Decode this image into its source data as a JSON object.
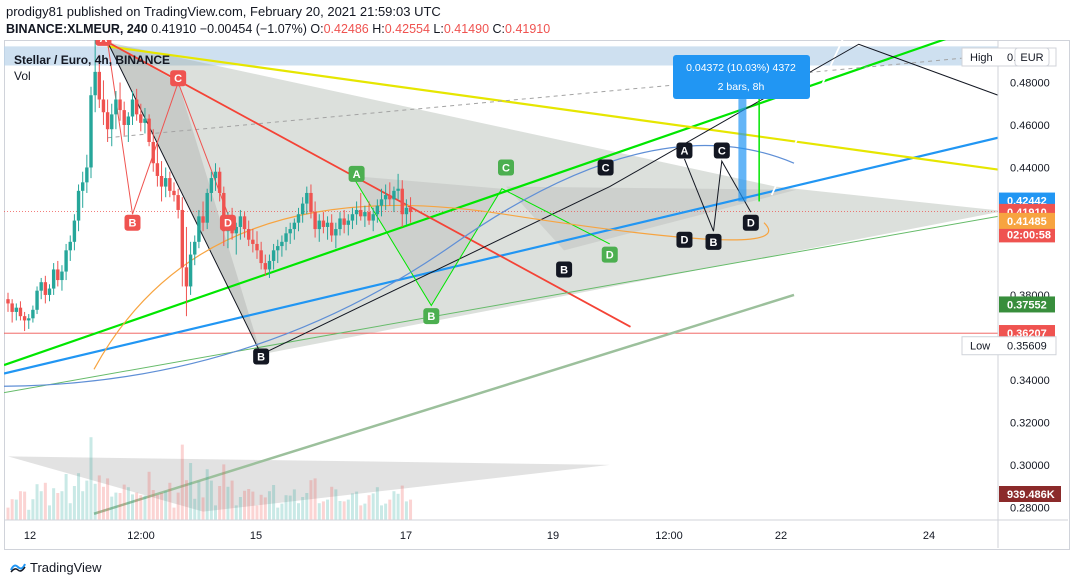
{
  "header": {
    "line1": "prodigy81 published on TradingView.com, February 20, 2021 21:59:03 UTC",
    "symbol": "BINANCE:XLMEUR, 240",
    "last": "0.41910",
    "change": "−0.00454 (−1.07%)",
    "o_label": "O:",
    "o": "0.42486",
    "h_label": "H:",
    "h": "0.42554",
    "l_label": "L:",
    "l": "0.41490",
    "c_label": "C:",
    "c": "0.41910"
  },
  "legend": {
    "title": "Stellar / Euro, 4h, BINANCE",
    "vol": "Vol"
  },
  "currency_button": "EUR",
  "footer": {
    "brand": "TradingView"
  },
  "colors": {
    "up": "#26a69a",
    "down": "#ef5350",
    "blue": "#2196f3",
    "green": "#00e600",
    "yellow": "#e6e600",
    "red": "#f44336",
    "black": "#131722",
    "orange": "#f7a440"
  },
  "chart_data": {
    "type": "candlestick",
    "ylim": [
      0.275,
      0.5
    ],
    "y_ticks": [
      "0.48000",
      "0.46000",
      "0.44000",
      "0.38000",
      "0.34000",
      "0.32000",
      "0.30000",
      "0.28000"
    ],
    "x_ticks": [
      "12",
      "12:00",
      "15",
      "17",
      "19",
      "12:00",
      "22",
      "24"
    ],
    "price_labels": [
      {
        "text": "High",
        "value": "0.4…",
        "y": 0.492,
        "style": "plain"
      },
      {
        "text": "",
        "value": "0.42442",
        "y": 0.42442,
        "style": "blue"
      },
      {
        "text": "",
        "value": "0.41910",
        "y": 0.4191,
        "style": "red"
      },
      {
        "text": "",
        "value": "02:00:58",
        "y": 0.4085,
        "style": "red"
      },
      {
        "text": "",
        "value": "0.41485",
        "y": 0.41485,
        "style": "orange"
      },
      {
        "text": "",
        "value": "0.37552",
        "y": 0.37552,
        "style": "green"
      },
      {
        "text": "",
        "value": "0.36207",
        "y": 0.36207,
        "style": "red"
      },
      {
        "text": "Low",
        "value": "0.35609",
        "y": 0.35609,
        "style": "plain"
      }
    ],
    "volume_label": "939.486K",
    "measure": {
      "line1": "0.04372 (10.03%) 4372",
      "line2": "2 bars, 8h"
    },
    "pattern_labels": [
      {
        "t": "A",
        "x": 23,
        "y": 0.501,
        "c": "red"
      },
      {
        "t": "C",
        "x": 41,
        "y": 0.482,
        "c": "red"
      },
      {
        "t": "B",
        "x": 30,
        "y": 0.414,
        "c": "red"
      },
      {
        "t": "D",
        "x": 53,
        "y": 0.414,
        "c": "red"
      },
      {
        "t": "A",
        "x": 84,
        "y": 0.437,
        "c": "green"
      },
      {
        "t": "C",
        "x": 120,
        "y": 0.44,
        "c": "green"
      },
      {
        "t": "B",
        "x": 102,
        "y": 0.37,
        "c": "green"
      },
      {
        "t": "D",
        "x": 145,
        "y": 0.399,
        "c": "green"
      },
      {
        "t": "B",
        "x": 61,
        "y": 0.351,
        "c": "black"
      },
      {
        "t": "C",
        "x": 144,
        "y": 0.44,
        "c": "black"
      },
      {
        "t": "B",
        "x": 134,
        "y": 0.392,
        "c": "black"
      },
      {
        "t": "A",
        "x": 163,
        "y": 0.448,
        "c": "black"
      },
      {
        "t": "C",
        "x": 172,
        "y": 0.448,
        "c": "black"
      },
      {
        "t": "D",
        "x": 163,
        "y": 0.406,
        "c": "black"
      },
      {
        "t": "B",
        "x": 170,
        "y": 0.405,
        "c": "black"
      },
      {
        "t": "D",
        "x": 179,
        "y": 0.414,
        "c": "black"
      }
    ],
    "candles": [
      [
        0.378,
        0.381,
        0.372,
        0.376
      ],
      [
        0.376,
        0.378,
        0.367,
        0.372
      ],
      [
        0.372,
        0.376,
        0.368,
        0.374
      ],
      [
        0.374,
        0.377,
        0.368,
        0.37
      ],
      [
        0.37,
        0.372,
        0.363,
        0.368
      ],
      [
        0.368,
        0.371,
        0.364,
        0.369
      ],
      [
        0.369,
        0.375,
        0.367,
        0.373
      ],
      [
        0.373,
        0.384,
        0.371,
        0.382
      ],
      [
        0.382,
        0.388,
        0.378,
        0.386
      ],
      [
        0.386,
        0.389,
        0.376,
        0.38
      ],
      [
        0.38,
        0.385,
        0.377,
        0.383
      ],
      [
        0.383,
        0.395,
        0.38,
        0.392
      ],
      [
        0.392,
        0.396,
        0.384,
        0.387
      ],
      [
        0.387,
        0.394,
        0.382,
        0.391
      ],
      [
        0.391,
        0.404,
        0.387,
        0.401
      ],
      [
        0.401,
        0.408,
        0.396,
        0.405
      ],
      [
        0.405,
        0.418,
        0.401,
        0.415
      ],
      [
        0.415,
        0.432,
        0.41,
        0.429
      ],
      [
        0.429,
        0.438,
        0.421,
        0.433
      ],
      [
        0.433,
        0.446,
        0.428,
        0.44
      ],
      [
        0.44,
        0.478,
        0.435,
        0.474
      ],
      [
        0.474,
        0.5,
        0.466,
        0.485
      ],
      [
        0.485,
        0.493,
        0.468,
        0.472
      ],
      [
        0.472,
        0.481,
        0.46,
        0.466
      ],
      [
        0.466,
        0.472,
        0.452,
        0.458
      ],
      [
        0.458,
        0.47,
        0.45,
        0.465
      ],
      [
        0.465,
        0.476,
        0.458,
        0.472
      ],
      [
        0.472,
        0.48,
        0.462,
        0.467
      ],
      [
        0.467,
        0.471,
        0.455,
        0.46
      ],
      [
        0.46,
        0.466,
        0.452,
        0.464
      ],
      [
        0.464,
        0.476,
        0.46,
        0.472
      ],
      [
        0.472,
        0.477,
        0.462,
        0.465
      ],
      [
        0.465,
        0.47,
        0.457,
        0.461
      ],
      [
        0.461,
        0.468,
        0.456,
        0.463
      ],
      [
        0.463,
        0.465,
        0.45,
        0.452
      ],
      [
        0.452,
        0.458,
        0.438,
        0.442
      ],
      [
        0.442,
        0.451,
        0.431,
        0.436
      ],
      [
        0.436,
        0.443,
        0.424,
        0.431
      ],
      [
        0.431,
        0.44,
        0.426,
        0.435
      ],
      [
        0.435,
        0.438,
        0.426,
        0.429
      ],
      [
        0.429,
        0.433,
        0.424,
        0.427
      ],
      [
        0.427,
        0.43,
        0.416,
        0.42
      ],
      [
        0.42,
        0.426,
        0.384,
        0.393
      ],
      [
        0.393,
        0.412,
        0.37,
        0.384
      ],
      [
        0.384,
        0.405,
        0.38,
        0.399
      ],
      [
        0.399,
        0.408,
        0.394,
        0.405
      ],
      [
        0.405,
        0.42,
        0.402,
        0.417
      ],
      [
        0.417,
        0.424,
        0.41,
        0.414
      ],
      [
        0.414,
        0.43,
        0.411,
        0.428
      ],
      [
        0.428,
        0.438,
        0.424,
        0.435
      ],
      [
        0.435,
        0.442,
        0.429,
        0.438
      ],
      [
        0.438,
        0.44,
        0.424,
        0.428
      ],
      [
        0.428,
        0.431,
        0.403,
        0.41
      ],
      [
        0.41,
        0.419,
        0.402,
        0.416
      ],
      [
        0.416,
        0.421,
        0.406,
        0.409
      ],
      [
        0.409,
        0.414,
        0.399,
        0.412
      ],
      [
        0.412,
        0.42,
        0.406,
        0.417
      ],
      [
        0.417,
        0.419,
        0.407,
        0.411
      ],
      [
        0.411,
        0.415,
        0.403,
        0.406
      ],
      [
        0.406,
        0.411,
        0.4,
        0.404
      ],
      [
        0.404,
        0.41,
        0.397,
        0.401
      ],
      [
        0.401,
        0.405,
        0.392,
        0.395
      ],
      [
        0.395,
        0.399,
        0.389,
        0.392
      ],
      [
        0.392,
        0.399,
        0.388,
        0.396
      ],
      [
        0.396,
        0.404,
        0.392,
        0.401
      ],
      [
        0.401,
        0.406,
        0.395,
        0.403
      ],
      [
        0.403,
        0.408,
        0.398,
        0.405
      ],
      [
        0.405,
        0.412,
        0.401,
        0.409
      ],
      [
        0.409,
        0.414,
        0.404,
        0.411
      ],
      [
        0.411,
        0.416,
        0.406,
        0.414
      ],
      [
        0.414,
        0.421,
        0.41,
        0.418
      ],
      [
        0.418,
        0.426,
        0.414,
        0.423
      ],
      [
        0.423,
        0.431,
        0.418,
        0.428
      ],
      [
        0.428,
        0.432,
        0.416,
        0.419
      ],
      [
        0.419,
        0.424,
        0.407,
        0.411
      ],
      [
        0.411,
        0.418,
        0.405,
        0.415
      ],
      [
        0.415,
        0.419,
        0.409,
        0.412
      ],
      [
        0.412,
        0.417,
        0.406,
        0.414
      ],
      [
        0.414,
        0.418,
        0.405,
        0.408
      ],
      [
        0.408,
        0.414,
        0.402,
        0.411
      ],
      [
        0.411,
        0.419,
        0.408,
        0.416
      ],
      [
        0.416,
        0.42,
        0.409,
        0.413
      ],
      [
        0.413,
        0.418,
        0.408,
        0.415
      ],
      [
        0.415,
        0.421,
        0.411,
        0.418
      ],
      [
        0.418,
        0.424,
        0.413,
        0.42
      ],
      [
        0.42,
        0.428,
        0.415,
        0.417
      ],
      [
        0.417,
        0.422,
        0.412,
        0.419
      ],
      [
        0.419,
        0.424,
        0.413,
        0.415
      ],
      [
        0.415,
        0.421,
        0.41,
        0.418
      ],
      [
        0.418,
        0.425,
        0.414,
        0.422
      ],
      [
        0.422,
        0.43,
        0.417,
        0.425
      ],
      [
        0.425,
        0.432,
        0.42,
        0.427
      ],
      [
        0.427,
        0.433,
        0.422,
        0.425
      ],
      [
        0.425,
        0.431,
        0.419,
        0.429
      ],
      [
        0.429,
        0.437,
        0.425,
        0.43
      ],
      [
        0.43,
        0.434,
        0.412,
        0.418
      ],
      [
        0.418,
        0.425,
        0.413,
        0.421
      ],
      [
        0.421,
        0.426,
        0.414,
        0.419
      ]
    ]
  }
}
